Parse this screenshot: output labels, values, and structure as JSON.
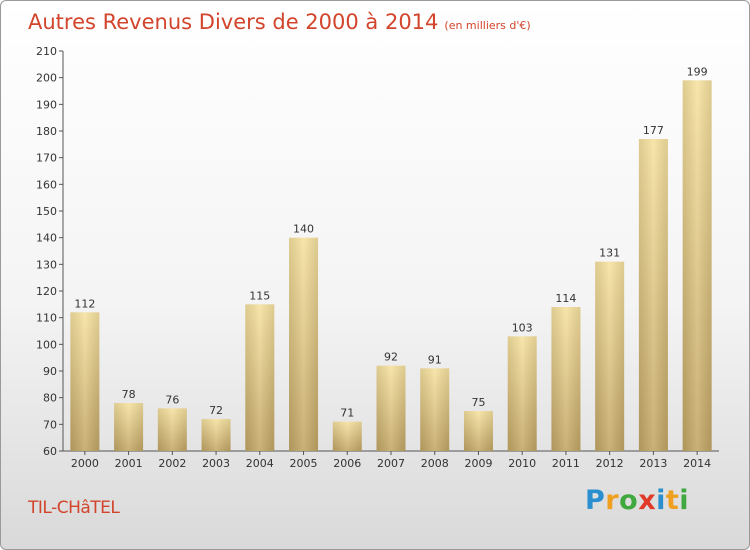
{
  "header": {
    "title": "Autres Revenus Divers de 2000 à 2014",
    "unit": "(en milliers d'€)"
  },
  "footer": {
    "city": "TIL-CHâTEL",
    "logo": {
      "p": "P",
      "r": "r",
      "o": "o",
      "x": "x",
      "i1": "i",
      "t": "t",
      "i2": "i"
    }
  },
  "colors": {
    "title": "#d2442b",
    "bar_light": "#f7e2a0",
    "bar_dark": "#c2a665"
  },
  "chart_data": {
    "type": "bar",
    "categories": [
      "2000",
      "2001",
      "2002",
      "2003",
      "2004",
      "2005",
      "2006",
      "2007",
      "2008",
      "2009",
      "2010",
      "2011",
      "2012",
      "2013",
      "2014"
    ],
    "values": [
      112,
      78,
      76,
      72,
      115,
      140,
      71,
      92,
      91,
      75,
      103,
      114,
      131,
      177,
      199
    ],
    "title": "Autres Revenus Divers de 2000 à 2014",
    "subtitle": "(en milliers d'€)",
    "xlabel": "",
    "ylabel": "",
    "ylim": [
      60,
      210
    ],
    "yticks": [
      60,
      70,
      80,
      90,
      100,
      110,
      120,
      130,
      140,
      150,
      160,
      170,
      180,
      190,
      200,
      210
    ],
    "grid": false,
    "legend": "none"
  }
}
